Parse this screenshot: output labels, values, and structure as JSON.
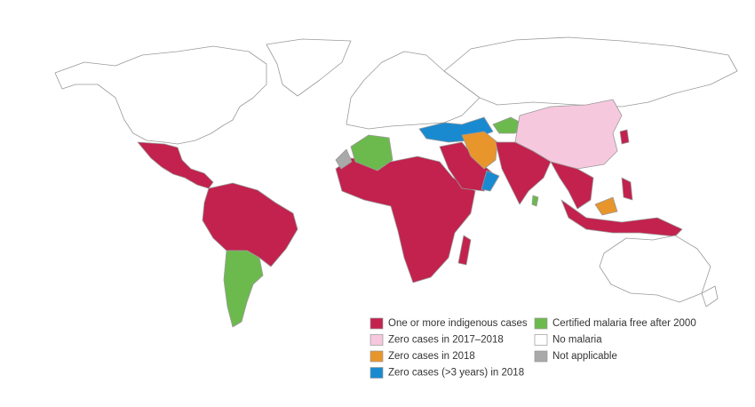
{
  "legend": {
    "items": [
      {
        "label": "One or more indigenous cases",
        "color": "#c2224d"
      },
      {
        "label": "Zero cases in 2017–2018",
        "color": "#f6c8dd"
      },
      {
        "label": "Zero cases in 2018",
        "color": "#e8952c"
      },
      {
        "label": "Zero cases (>3 years) in 2018",
        "color": "#1a8ad0"
      },
      {
        "label": "Certified malaria free after 2000",
        "color": "#6cba4d"
      },
      {
        "label": "No malaria",
        "color": "#ffffff"
      },
      {
        "label": "Not applicable",
        "color": "#a9a9a9"
      }
    ]
  }
}
